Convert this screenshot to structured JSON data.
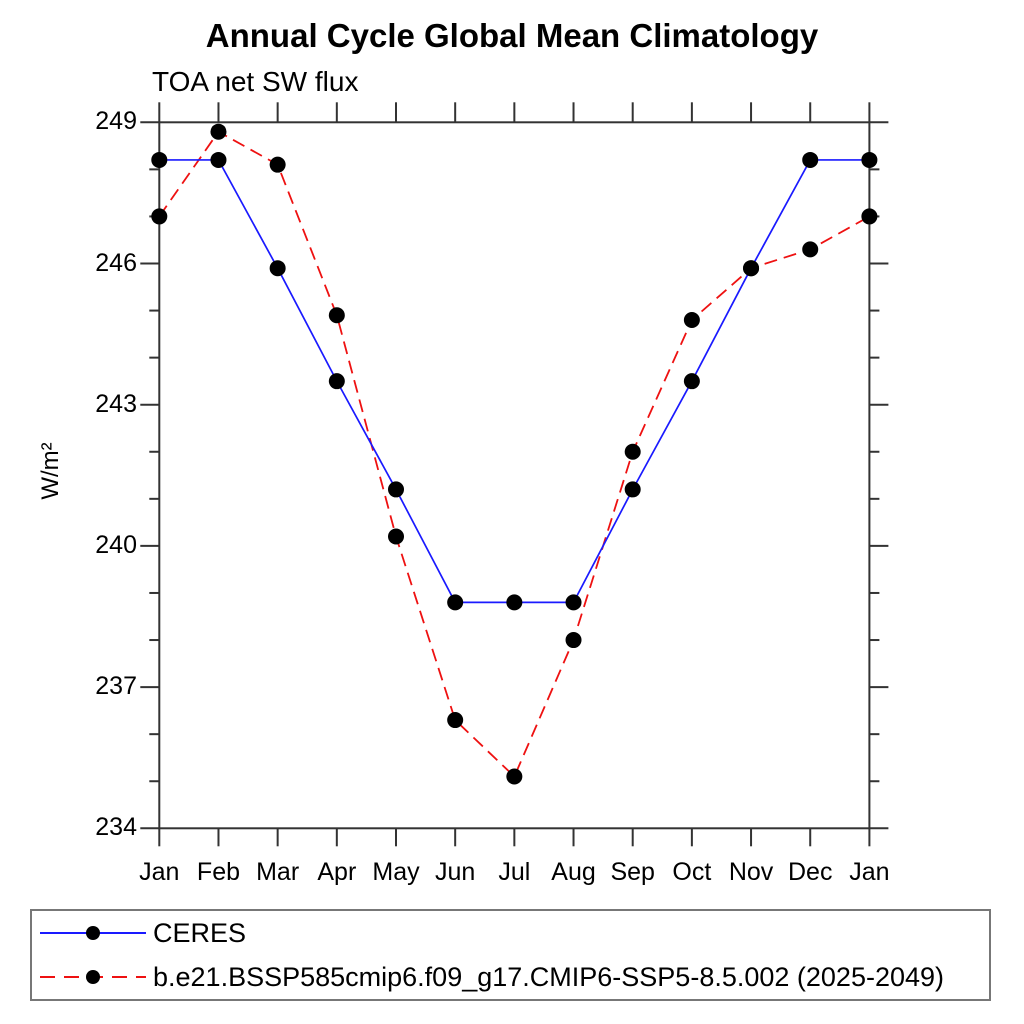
{
  "chart_data": {
    "type": "line",
    "title": "Annual Cycle Global Mean Climatology",
    "subtitle": "TOA net SW flux",
    "ylabel": "W/m²",
    "categories": [
      "Jan",
      "Feb",
      "Mar",
      "Apr",
      "May",
      "Jun",
      "Jul",
      "Aug",
      "Sep",
      "Oct",
      "Nov",
      "Dec",
      "Jan"
    ],
    "ylim": [
      234,
      249
    ],
    "ytick_major": [
      249,
      246,
      243,
      240,
      237,
      234
    ],
    "ytick_minor_step": 1,
    "grid": false,
    "legend_position": "bottom",
    "axis_color": "#333333",
    "marker_color": "#000000",
    "series": [
      {
        "name": "CERES",
        "color": "#1a1aff",
        "line_style": "solid",
        "marker": "circle",
        "values": [
          248.2,
          248.2,
          245.9,
          243.5,
          241.2,
          238.8,
          238.8,
          238.8,
          241.2,
          243.5,
          245.9,
          248.2,
          248.2
        ]
      },
      {
        "name": "b.e21.BSSP585cmip6.f09_g17.CMIP6-SSP5-8.5.002 (2025-2049)",
        "color": "#ee1111",
        "line_style": "dashed",
        "marker": "circle",
        "values": [
          247.0,
          248.8,
          248.1,
          244.9,
          240.2,
          236.3,
          235.1,
          238.0,
          242.0,
          244.8,
          245.9,
          246.3,
          247.0
        ]
      }
    ]
  }
}
